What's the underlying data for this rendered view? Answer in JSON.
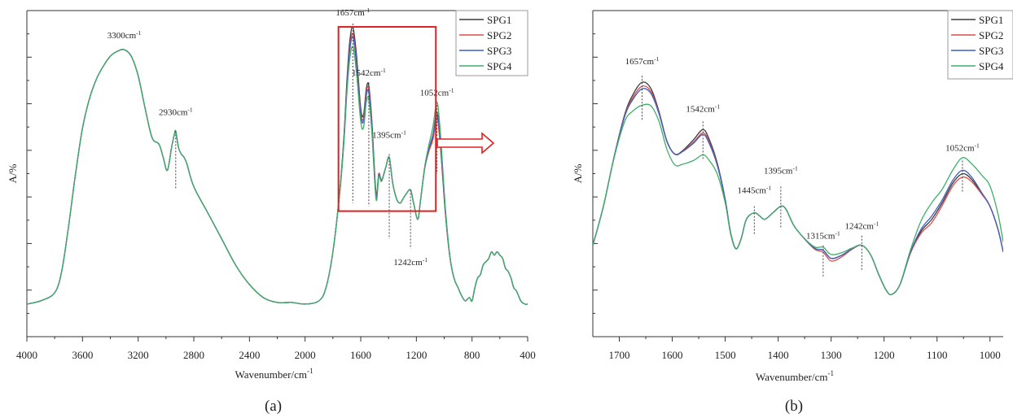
{
  "figure": {
    "background": "#ffffff",
    "annotation_color": "#e02020"
  },
  "chart_data": [
    {
      "panel": "a",
      "caption": "(a)",
      "type": "line",
      "xlabel_main": "Wavenumber/cm",
      "xlabel_sup": "-1",
      "ylabel": "A/%",
      "xlim": [
        4000,
        400
      ],
      "ylim": [
        0,
        1
      ],
      "y_tick_labels_shown": false,
      "x_ticks": [
        4000,
        3600,
        3200,
        2800,
        2400,
        2000,
        1600,
        1200,
        800,
        400
      ],
      "x_tick_labels": [
        "4000",
        "3600",
        "3200",
        "2800",
        "2400",
        "2000",
        "1600",
        "1200",
        "800",
        "400"
      ],
      "grid": false,
      "legend_position": "top-right",
      "zoom_box": {
        "x_range": [
          1760,
          1060
        ],
        "y_range": [
          0.385,
          0.95
        ]
      },
      "base_curve": [
        [
          4000,
          0.1
        ],
        [
          3900,
          0.11
        ],
        [
          3800,
          0.135
        ],
        [
          3750,
          0.2
        ],
        [
          3700,
          0.34
        ],
        [
          3650,
          0.5
        ],
        [
          3600,
          0.64
        ],
        [
          3550,
          0.73
        ],
        [
          3500,
          0.79
        ],
        [
          3450,
          0.83
        ],
        [
          3400,
          0.86
        ],
        [
          3350,
          0.875
        ],
        [
          3300,
          0.88
        ],
        [
          3250,
          0.86
        ],
        [
          3200,
          0.8
        ],
        [
          3150,
          0.7
        ],
        [
          3100,
          0.61
        ],
        [
          3050,
          0.59
        ],
        [
          3020,
          0.55
        ],
        [
          2990,
          0.51
        ],
        [
          2960,
          0.58
        ],
        [
          2940,
          0.62
        ],
        [
          2930,
          0.63
        ],
        [
          2910,
          0.58
        ],
        [
          2890,
          0.56
        ],
        [
          2870,
          0.55
        ],
        [
          2850,
          0.53
        ],
        [
          2800,
          0.46
        ],
        [
          2700,
          0.38
        ],
        [
          2600,
          0.3
        ],
        [
          2500,
          0.22
        ],
        [
          2400,
          0.16
        ],
        [
          2300,
          0.12
        ],
        [
          2200,
          0.105
        ],
        [
          2100,
          0.105
        ],
        [
          2000,
          0.1
        ],
        [
          1900,
          0.11
        ],
        [
          1850,
          0.15
        ],
        [
          1800,
          0.26
        ],
        [
          1750,
          0.45
        ],
        [
          1720,
          0.62
        ],
        [
          1700,
          0.78
        ],
        [
          1680,
          0.9
        ],
        [
          1657,
          0.95
        ],
        [
          1630,
          0.86
        ],
        [
          1600,
          0.7
        ],
        [
          1580,
          0.68
        ],
        [
          1560,
          0.76
        ],
        [
          1542,
          0.77
        ],
        [
          1520,
          0.66
        ],
        [
          1490,
          0.44
        ],
        [
          1470,
          0.5
        ],
        [
          1450,
          0.48
        ],
        [
          1420,
          0.52
        ],
        [
          1395,
          0.55
        ],
        [
          1370,
          0.47
        ],
        [
          1340,
          0.42
        ],
        [
          1315,
          0.41
        ],
        [
          1300,
          0.42
        ],
        [
          1270,
          0.44
        ],
        [
          1242,
          0.45
        ],
        [
          1220,
          0.41
        ],
        [
          1190,
          0.36
        ],
        [
          1170,
          0.42
        ],
        [
          1140,
          0.52
        ],
        [
          1110,
          0.58
        ],
        [
          1080,
          0.63
        ],
        [
          1052,
          0.7
        ],
        [
          1030,
          0.62
        ],
        [
          1010,
          0.5
        ],
        [
          990,
          0.38
        ],
        [
          960,
          0.25
        ],
        [
          930,
          0.18
        ],
        [
          900,
          0.15
        ],
        [
          880,
          0.13
        ],
        [
          850,
          0.11
        ],
        [
          820,
          0.12
        ],
        [
          800,
          0.11
        ],
        [
          780,
          0.15
        ],
        [
          760,
          0.18
        ],
        [
          740,
          0.19
        ],
        [
          720,
          0.22
        ],
        [
          700,
          0.23
        ],
        [
          680,
          0.24
        ],
        [
          660,
          0.26
        ],
        [
          640,
          0.25
        ],
        [
          620,
          0.26
        ],
        [
          600,
          0.25
        ],
        [
          580,
          0.24
        ],
        [
          560,
          0.21
        ],
        [
          540,
          0.2
        ],
        [
          520,
          0.18
        ],
        [
          500,
          0.15
        ],
        [
          480,
          0.14
        ],
        [
          450,
          0.11
        ],
        [
          420,
          0.1
        ],
        [
          400,
          0.1
        ]
      ],
      "series": [
        {
          "name": "SPG1",
          "color": "#3a3a3a",
          "adjust": [
            [
              1657,
              0.0
            ],
            [
              1542,
              0.0
            ],
            [
              1052,
              -0.02
            ]
          ]
        },
        {
          "name": "SPG2",
          "color": "#e04b4b",
          "adjust": [
            [
              1657,
              -0.02
            ],
            [
              1542,
              -0.01
            ],
            [
              1052,
              -0.03
            ]
          ]
        },
        {
          "name": "SPG3",
          "color": "#3f5fbf",
          "adjust": [
            [
              1657,
              -0.03
            ],
            [
              1542,
              -0.02
            ],
            [
              1052,
              -0.01
            ]
          ]
        },
        {
          "name": "SPG4",
          "color": "#3fae6a",
          "adjust": [
            [
              1657,
              -0.06
            ],
            [
              1542,
              -0.04
            ],
            [
              1052,
              0.02
            ]
          ]
        }
      ],
      "peak_labels": [
        {
          "text": "3300cm",
          "sup": "-1",
          "x": 3300,
          "y_text": 0.915,
          "dash_to": null
        },
        {
          "text": "2930cm",
          "sup": "-1",
          "x": 2930,
          "y_text": 0.68,
          "dash_to": [
            0.63,
            0.45
          ]
        },
        {
          "text": "1657cm",
          "sup": "-1",
          "x": 1657,
          "y_text": 0.985,
          "dash_to": [
            0.96,
            0.41
          ]
        },
        {
          "text": "1542cm",
          "sup": "-1",
          "x": 1542,
          "y_text": 0.8,
          "dash_to": [
            0.78,
            0.4
          ]
        },
        {
          "text": "1395cm",
          "sup": "-1",
          "x": 1395,
          "y_text": 0.61,
          "dash_to": [
            0.56,
            0.3
          ]
        },
        {
          "text": "1052cm",
          "sup": "-1",
          "x": 1052,
          "y_text": 0.74,
          "dash_to": [
            0.71,
            0.5
          ]
        },
        {
          "text": "1242cm",
          "sup": "-1",
          "x": 1242,
          "y_text": 0.22,
          "dash_to": [
            0.45,
            0.27
          ]
        }
      ]
    },
    {
      "panel": "b",
      "caption": "(b)",
      "type": "line",
      "xlabel_main": "Wavenumber/cm",
      "xlabel_sup": "-1",
      "ylabel": "A/%",
      "xlim": [
        1750,
        975
      ],
      "ylim": [
        0,
        1
      ],
      "y_tick_labels_shown": false,
      "x_ticks": [
        1700,
        1600,
        1500,
        1400,
        1300,
        1200,
        1100,
        1000
      ],
      "x_tick_labels": [
        "1700",
        "1600",
        "1500",
        "1400",
        "1300",
        "1200",
        "1100",
        "1000"
      ],
      "grid": false,
      "legend_position": "top-right",
      "base_curve": [
        [
          1750,
          0.28
        ],
        [
          1730,
          0.4
        ],
        [
          1710,
          0.55
        ],
        [
          1690,
          0.68
        ],
        [
          1675,
          0.74
        ],
        [
          1657,
          0.78
        ],
        [
          1640,
          0.76
        ],
        [
          1625,
          0.69
        ],
        [
          1610,
          0.6
        ],
        [
          1595,
          0.56
        ],
        [
          1580,
          0.57
        ],
        [
          1560,
          0.6
        ],
        [
          1542,
          0.63
        ],
        [
          1530,
          0.6
        ],
        [
          1515,
          0.53
        ],
        [
          1500,
          0.42
        ],
        [
          1490,
          0.32
        ],
        [
          1480,
          0.27
        ],
        [
          1470,
          0.3
        ],
        [
          1460,
          0.36
        ],
        [
          1445,
          0.38
        ],
        [
          1435,
          0.37
        ],
        [
          1425,
          0.36
        ],
        [
          1410,
          0.38
        ],
        [
          1395,
          0.4
        ],
        [
          1385,
          0.39
        ],
        [
          1370,
          0.34
        ],
        [
          1350,
          0.3
        ],
        [
          1330,
          0.27
        ],
        [
          1315,
          0.265
        ],
        [
          1300,
          0.24
        ],
        [
          1280,
          0.25
        ],
        [
          1260,
          0.27
        ],
        [
          1242,
          0.28
        ],
        [
          1225,
          0.25
        ],
        [
          1210,
          0.19
        ],
        [
          1195,
          0.14
        ],
        [
          1185,
          0.13
        ],
        [
          1170,
          0.16
        ],
        [
          1150,
          0.26
        ],
        [
          1130,
          0.33
        ],
        [
          1110,
          0.37
        ],
        [
          1090,
          0.42
        ],
        [
          1070,
          0.48
        ],
        [
          1052,
          0.51
        ],
        [
          1035,
          0.49
        ],
        [
          1015,
          0.44
        ],
        [
          1000,
          0.4
        ],
        [
          985,
          0.33
        ],
        [
          975,
          0.26
        ]
      ],
      "series": [
        {
          "name": "SPG1",
          "color": "#3a3a3a",
          "adjust": [
            [
              1657,
              0.0
            ],
            [
              1542,
              0.005
            ],
            [
              1052,
              -0.01
            ],
            [
              1110,
              -0.01
            ]
          ]
        },
        {
          "name": "SPG2",
          "color": "#e04b4b",
          "adjust": [
            [
              1657,
              -0.012
            ],
            [
              1542,
              -0.005
            ],
            [
              1052,
              -0.02
            ],
            [
              1110,
              -0.02
            ],
            [
              1300,
              -0.008
            ]
          ]
        },
        {
          "name": "SPG3",
          "color": "#3f5fbf",
          "adjust": [
            [
              1657,
              -0.02
            ],
            [
              1542,
              -0.01
            ],
            [
              1052,
              0.0
            ],
            [
              1300,
              0.0
            ],
            [
              1110,
              0.0
            ]
          ]
        },
        {
          "name": "SPG4",
          "color": "#3fae6a",
          "adjust": [
            [
              1657,
              -0.07
            ],
            [
              1542,
              -0.07
            ],
            [
              1590,
              -0.03
            ],
            [
              1052,
              0.035
            ],
            [
              1110,
              0.04
            ],
            [
              1000,
              0.06
            ],
            [
              1300,
              0.012
            ]
          ]
        }
      ],
      "peak_labels": [
        {
          "text": "1657cm",
          "sup": "-1",
          "x": 1657,
          "y_text": 0.835,
          "dash_to": [
            0.8,
            0.66
          ]
        },
        {
          "text": "1542cm",
          "sup": "-1",
          "x": 1542,
          "y_text": 0.69,
          "dash_to": [
            0.66,
            0.54
          ]
        },
        {
          "text": "1445cm",
          "sup": "-1",
          "x": 1445,
          "y_text": 0.44,
          "dash_to": [
            0.4,
            0.31
          ]
        },
        {
          "text": "1395cm",
          "sup": "-1",
          "x": 1395,
          "y_text": 0.5,
          "dash_to": [
            0.46,
            0.33
          ]
        },
        {
          "text": "1315cm",
          "sup": "-1",
          "x": 1315,
          "y_text": 0.3,
          "dash_to": [
            0.28,
            0.18
          ]
        },
        {
          "text": "1242cm",
          "sup": "-1",
          "x": 1242,
          "y_text": 0.33,
          "dash_to": [
            0.31,
            0.2
          ]
        },
        {
          "text": "1052cm",
          "sup": "-1",
          "x": 1052,
          "y_text": 0.57,
          "dash_to": [
            0.54,
            0.44
          ]
        }
      ]
    }
  ]
}
